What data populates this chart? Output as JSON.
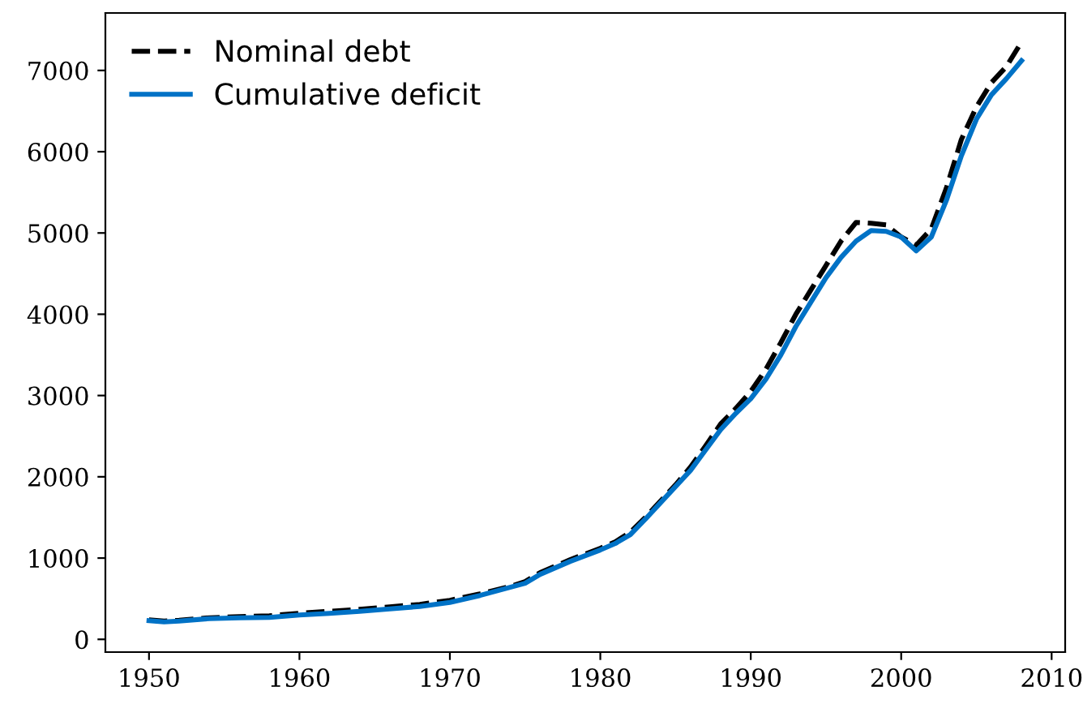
{
  "chart_data": {
    "type": "line",
    "x": [
      1950,
      1951,
      1952,
      1954,
      1956,
      1958,
      1960,
      1962,
      1964,
      1966,
      1968,
      1970,
      1972,
      1974,
      1975,
      1976,
      1978,
      1980,
      1981,
      1982,
      1983,
      1984,
      1985,
      1986,
      1987,
      1988,
      1989,
      1990,
      1991,
      1992,
      1993,
      1994,
      1995,
      1996,
      1997,
      1998,
      1999,
      2000,
      2001,
      2002,
      2003,
      2004,
      2005,
      2006,
      2007,
      2008
    ],
    "series": [
      {
        "name": "Nominal debt",
        "color": "#000000",
        "line_style": "dashed",
        "values": [
          240,
          225,
          235,
          265,
          280,
          290,
          320,
          345,
          370,
          400,
          430,
          480,
          560,
          650,
          710,
          820,
          980,
          1120,
          1200,
          1320,
          1500,
          1700,
          1900,
          2120,
          2380,
          2650,
          2840,
          3050,
          3320,
          3650,
          4000,
          4300,
          4600,
          4900,
          5130,
          5120,
          5100,
          4950,
          4850,
          5050,
          5550,
          6150,
          6550,
          6850,
          7050,
          7350
        ]
      },
      {
        "name": "Cumulative deficit",
        "color": "#0072c6",
        "line_style": "solid",
        "values": [
          230,
          215,
          225,
          255,
          265,
          270,
          300,
          320,
          345,
          375,
          405,
          455,
          540,
          640,
          690,
          800,
          960,
          1100,
          1180,
          1290,
          1480,
          1680,
          1880,
          2080,
          2330,
          2580,
          2780,
          2960,
          3200,
          3500,
          3850,
          4150,
          4450,
          4700,
          4900,
          5030,
          5020,
          4950,
          4780,
          4950,
          5400,
          5950,
          6400,
          6700,
          6900,
          7120
        ]
      }
    ],
    "xlim": [
      1947.1,
      2010.9
    ],
    "ylim": [
      -157,
      7707
    ],
    "xticks": [
      1950,
      1960,
      1970,
      1980,
      1990,
      2000,
      2010
    ],
    "yticks": [
      0,
      1000,
      2000,
      3000,
      4000,
      5000,
      6000,
      7000
    ],
    "grid": false,
    "legend": "top left"
  }
}
